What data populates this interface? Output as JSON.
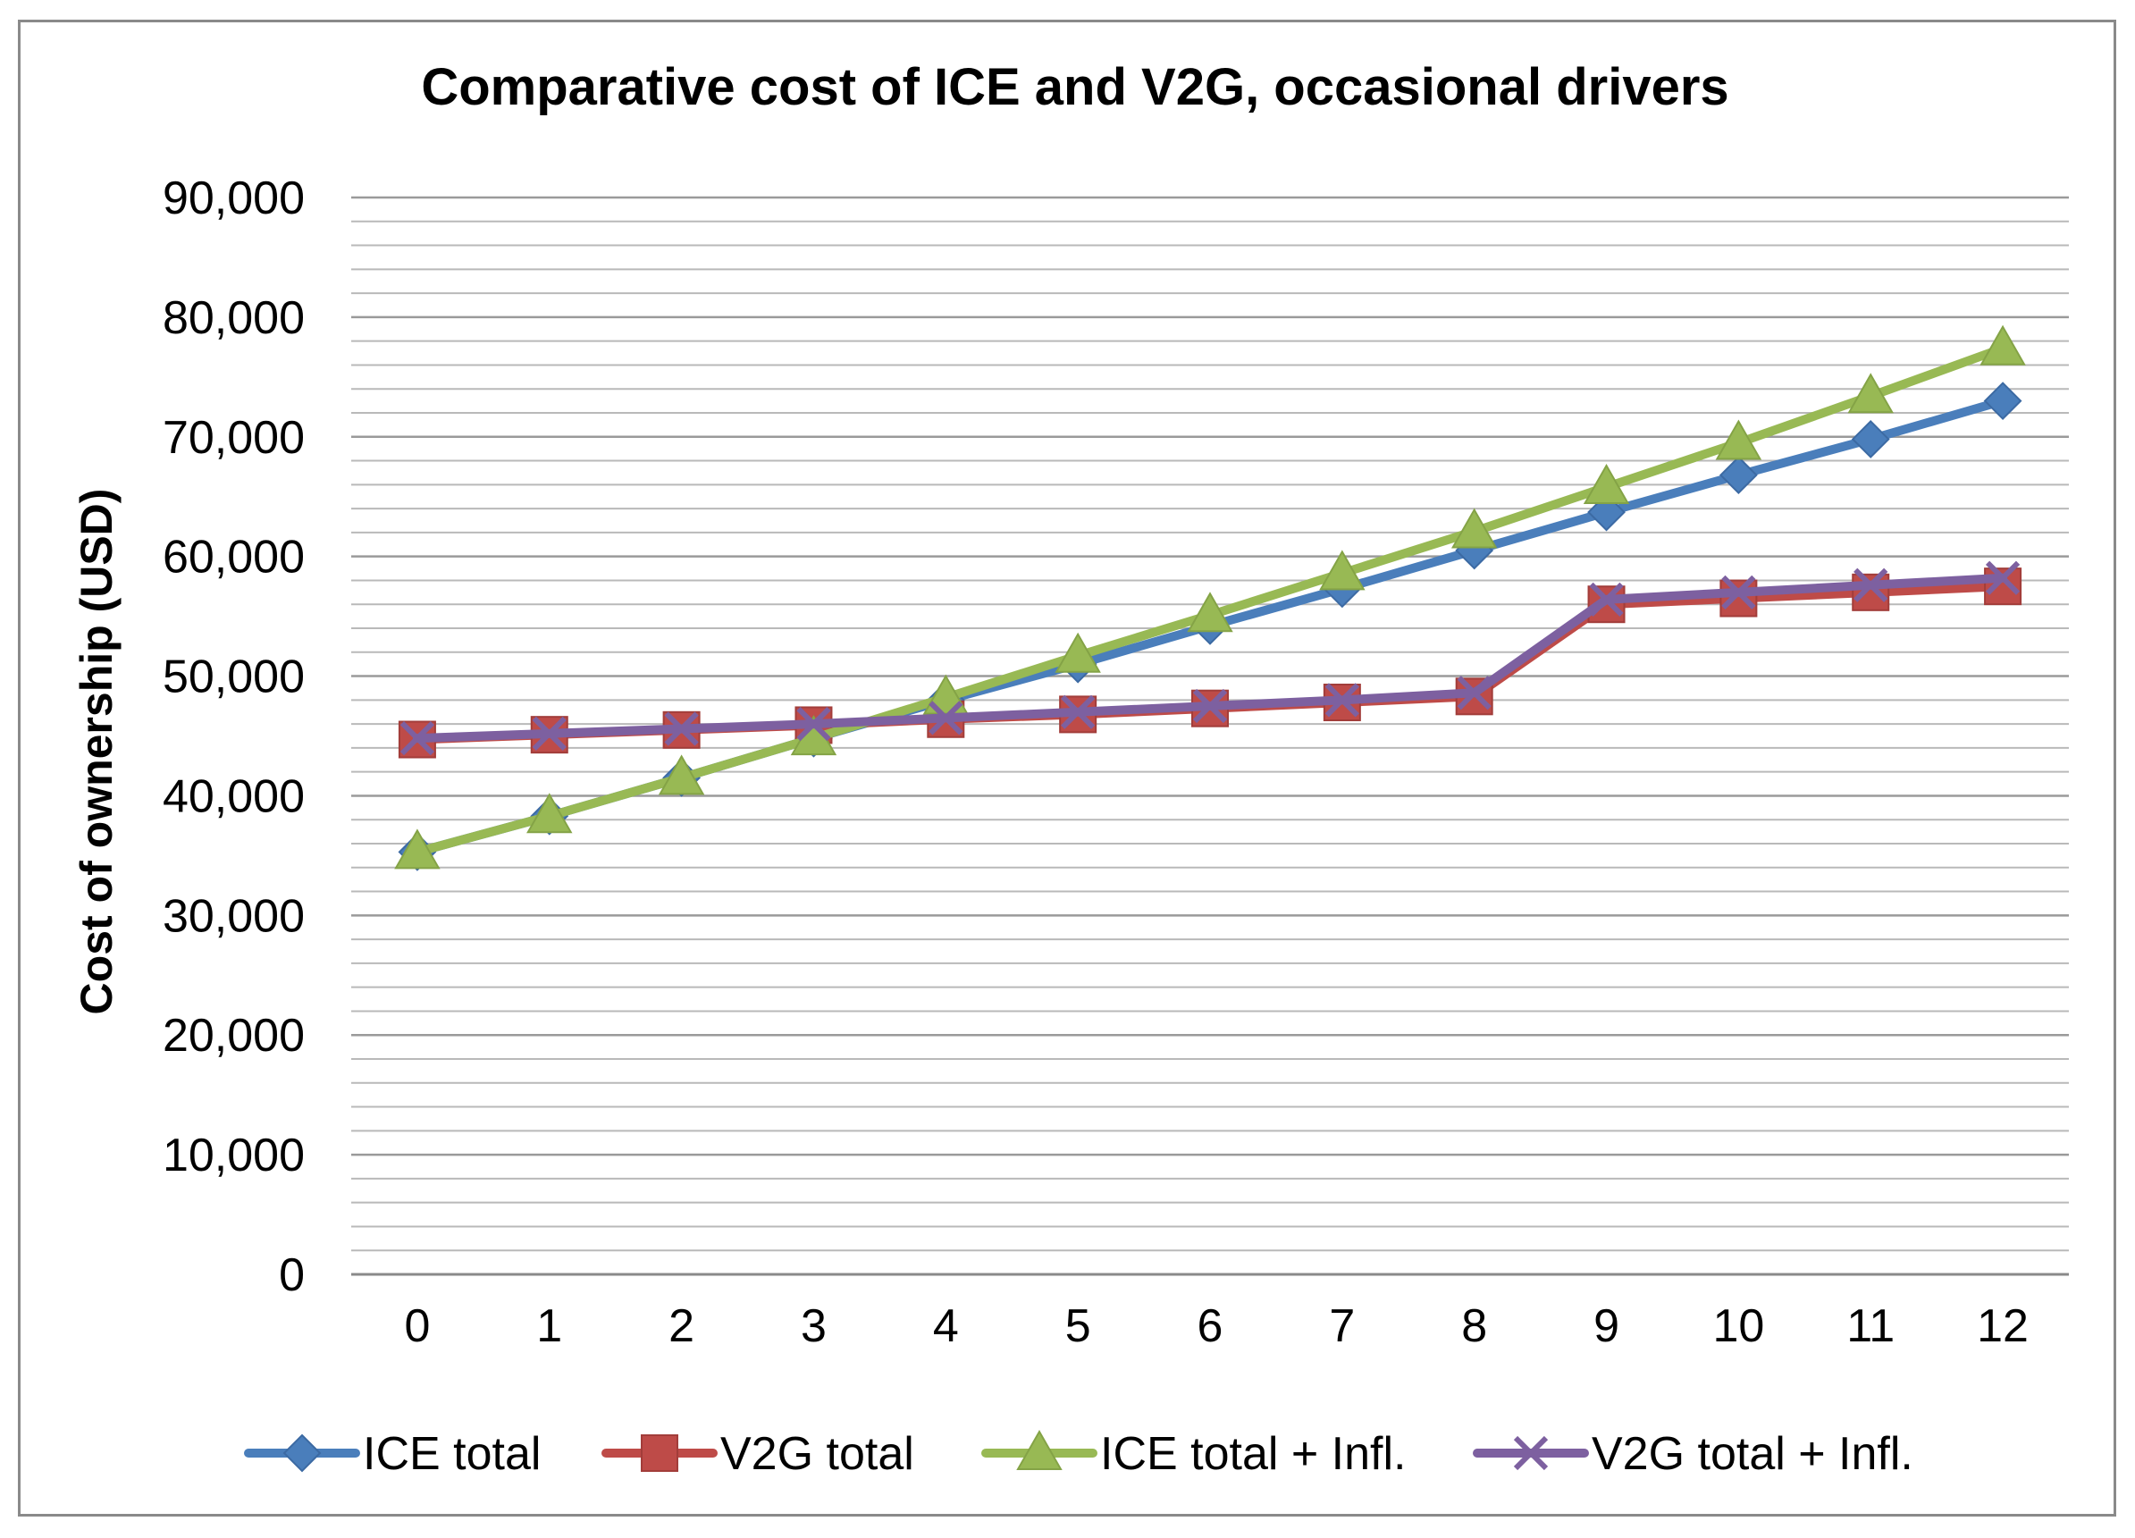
{
  "chart_data": {
    "type": "line",
    "title": "Comparative cost of ICE and V2G, occasional drivers",
    "xlabel": "",
    "ylabel": "Cost of ownership (USD)",
    "categories": [
      "0",
      "1",
      "2",
      "3",
      "4",
      "5",
      "6",
      "7",
      "8",
      "9",
      "10",
      "11",
      "12"
    ],
    "ylim": [
      0,
      90000
    ],
    "y_ticks": [
      "0",
      "10,000",
      "20,000",
      "30,000",
      "40,000",
      "50,000",
      "60,000",
      "70,000",
      "80,000",
      "90,000"
    ],
    "legend_position": "bottom",
    "series": [
      {
        "name": "ICE total",
        "marker": "diamond",
        "color": "#4a7ebb",
        "values": [
          35300,
          38300,
          41500,
          44800,
          48000,
          51000,
          54200,
          57300,
          60500,
          63700,
          66800,
          69800,
          73000
        ]
      },
      {
        "name": "V2G total",
        "marker": "square",
        "color": "#be4b48",
        "values": [
          44700,
          45100,
          45500,
          45900,
          46400,
          46800,
          47300,
          47800,
          48300,
          56000,
          56500,
          57000,
          57500
        ]
      },
      {
        "name": "ICE total + Infl.",
        "marker": "triangle",
        "color": "#98b954",
        "values": [
          35300,
          38300,
          41500,
          44800,
          48200,
          51700,
          55100,
          58600,
          62100,
          65800,
          69500,
          73400,
          77400
        ]
      },
      {
        "name": "V2G total + Infl.",
        "marker": "x",
        "color": "#7d60a0",
        "values": [
          44800,
          45200,
          45600,
          46000,
          46500,
          47000,
          47500,
          48000,
          48600,
          56400,
          57000,
          57600,
          58200
        ]
      }
    ]
  }
}
